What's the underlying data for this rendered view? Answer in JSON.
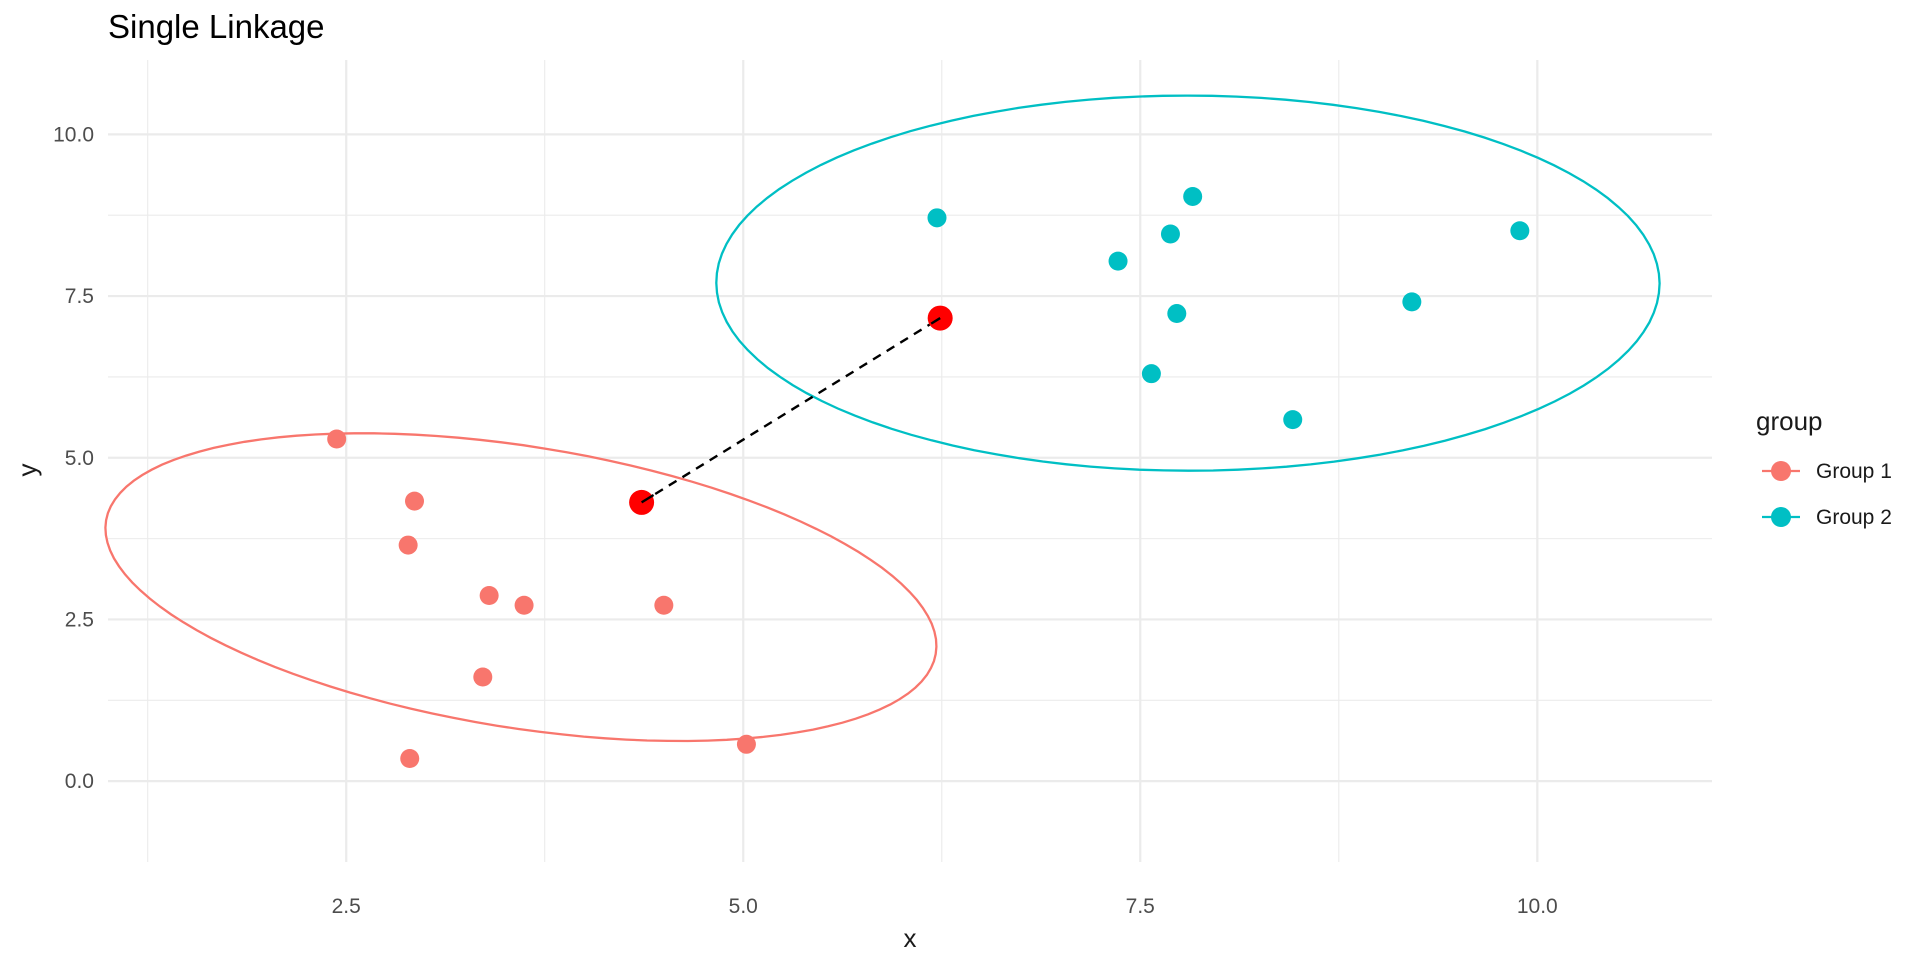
{
  "chart_data": {
    "type": "scatter",
    "title": "Single Linkage",
    "xlabel": "x",
    "ylabel": "y",
    "xlim": [
      1.0,
      11.1
    ],
    "ylim": [
      -1.25,
      11.15
    ],
    "x_ticks": [
      2.5,
      5.0,
      7.5,
      10.0
    ],
    "x_tick_labels": [
      "2.5",
      "5.0",
      "7.5",
      "10.0"
    ],
    "y_ticks": [
      0.0,
      2.5,
      5.0,
      7.5,
      10.0
    ],
    "y_tick_labels": [
      "0.0",
      "2.5",
      "5.0",
      "7.5",
      "10.0"
    ],
    "grid": true,
    "legend": {
      "title": "group",
      "position": "right",
      "entries": [
        {
          "label": "Group 1",
          "color": "#F8766D"
        },
        {
          "label": "Group 2",
          "color": "#00BFC4"
        }
      ]
    },
    "series": [
      {
        "name": "Group 1",
        "color": "#F8766D",
        "points": [
          {
            "x": 2.44,
            "y": 5.29
          },
          {
            "x": 2.93,
            "y": 4.33
          },
          {
            "x": 2.89,
            "y": 3.65
          },
          {
            "x": 3.4,
            "y": 2.87
          },
          {
            "x": 3.62,
            "y": 2.72
          },
          {
            "x": 4.5,
            "y": 2.72
          },
          {
            "x": 3.36,
            "y": 1.61
          },
          {
            "x": 2.9,
            "y": 0.35
          },
          {
            "x": 5.02,
            "y": 0.57
          },
          {
            "x": 4.36,
            "y": 4.31
          }
        ],
        "ellipse": {
          "center": [
            3.6,
            3.0
          ],
          "semi_major": 2.95,
          "semi_minor": 1.95,
          "angle_deg": -38
        }
      },
      {
        "name": "Group 2",
        "color": "#00BFC4",
        "points": [
          {
            "x": 6.22,
            "y": 8.71
          },
          {
            "x": 7.83,
            "y": 9.04
          },
          {
            "x": 7.69,
            "y": 8.46
          },
          {
            "x": 9.89,
            "y": 8.51
          },
          {
            "x": 7.36,
            "y": 8.04
          },
          {
            "x": 7.73,
            "y": 7.23
          },
          {
            "x": 9.21,
            "y": 7.41
          },
          {
            "x": 7.57,
            "y": 6.3
          },
          {
            "x": 8.46,
            "y": 5.59
          },
          {
            "x": 6.24,
            "y": 7.16
          }
        ],
        "ellipse": {
          "center": [
            7.8,
            7.7
          ],
          "semi_major": 2.97,
          "semi_minor": 2.9,
          "angle_deg": -3
        }
      }
    ],
    "highlight": {
      "color": "#FF0000",
      "points": [
        {
          "x": 4.36,
          "y": 4.31
        },
        {
          "x": 6.24,
          "y": 7.16
        }
      ],
      "link_style": "dashed",
      "link_color": "#000000"
    }
  }
}
